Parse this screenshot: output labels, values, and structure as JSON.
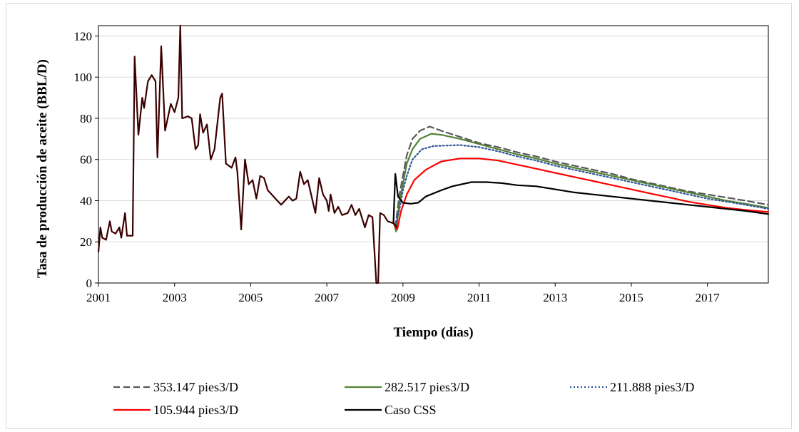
{
  "chart_data": {
    "type": "line",
    "title": "",
    "xlabel": "Tiempo (días)",
    "ylabel": "Tasa de producción de aceite (BBL/D)",
    "xlim": [
      2001,
      2018.6
    ],
    "ylim": [
      0,
      125
    ],
    "x_ticks": [
      2001,
      2003,
      2005,
      2007,
      2009,
      2011,
      2013,
      2015,
      2017
    ],
    "y_ticks": [
      0,
      20,
      40,
      60,
      80,
      100,
      120
    ],
    "grid": "horizontal",
    "legend_position": "bottom",
    "history": {
      "color": "#3b0000",
      "points": [
        [
          2001.0,
          15
        ],
        [
          2001.05,
          27
        ],
        [
          2001.1,
          22
        ],
        [
          2001.2,
          21
        ],
        [
          2001.3,
          30
        ],
        [
          2001.35,
          25
        ],
        [
          2001.45,
          24
        ],
        [
          2001.55,
          27
        ],
        [
          2001.6,
          22
        ],
        [
          2001.7,
          34
        ],
        [
          2001.75,
          23
        ],
        [
          2001.9,
          23
        ],
        [
          2001.95,
          110
        ],
        [
          2002.05,
          72
        ],
        [
          2002.15,
          90
        ],
        [
          2002.2,
          85
        ],
        [
          2002.3,
          98
        ],
        [
          2002.4,
          101
        ],
        [
          2002.5,
          98
        ],
        [
          2002.55,
          61
        ],
        [
          2002.65,
          115
        ],
        [
          2002.75,
          74
        ],
        [
          2002.9,
          87
        ],
        [
          2003.0,
          83
        ],
        [
          2003.1,
          90
        ],
        [
          2003.15,
          125
        ],
        [
          2003.2,
          80
        ],
        [
          2003.35,
          81
        ],
        [
          2003.45,
          80
        ],
        [
          2003.55,
          65
        ],
        [
          2003.62,
          67
        ],
        [
          2003.67,
          82
        ],
        [
          2003.75,
          73
        ],
        [
          2003.85,
          77
        ],
        [
          2003.95,
          60
        ],
        [
          2004.05,
          65
        ],
        [
          2004.2,
          90
        ],
        [
          2004.25,
          92
        ],
        [
          2004.35,
          58
        ],
        [
          2004.5,
          56
        ],
        [
          2004.6,
          61
        ],
        [
          2004.65,
          54
        ],
        [
          2004.75,
          26
        ],
        [
          2004.85,
          60
        ],
        [
          2004.95,
          48
        ],
        [
          2005.05,
          50
        ],
        [
          2005.15,
          41
        ],
        [
          2005.25,
          52
        ],
        [
          2005.35,
          51
        ],
        [
          2005.45,
          45
        ],
        [
          2005.55,
          43
        ],
        [
          2005.65,
          41
        ],
        [
          2005.8,
          38
        ],
        [
          2005.9,
          40
        ],
        [
          2006.0,
          42
        ],
        [
          2006.1,
          40
        ],
        [
          2006.2,
          41
        ],
        [
          2006.3,
          54
        ],
        [
          2006.4,
          48
        ],
        [
          2006.5,
          50
        ],
        [
          2006.6,
          42
        ],
        [
          2006.7,
          34
        ],
        [
          2006.8,
          51
        ],
        [
          2006.9,
          43
        ],
        [
          2007.0,
          40
        ],
        [
          2007.05,
          35
        ],
        [
          2007.1,
          43
        ],
        [
          2007.2,
          34
        ],
        [
          2007.3,
          37
        ],
        [
          2007.4,
          33
        ],
        [
          2007.55,
          34
        ],
        [
          2007.65,
          38
        ],
        [
          2007.75,
          33
        ],
        [
          2007.85,
          36
        ],
        [
          2008.0,
          27
        ],
        [
          2008.1,
          33
        ],
        [
          2008.2,
          32
        ],
        [
          2008.3,
          0
        ],
        [
          2008.35,
          0
        ],
        [
          2008.4,
          34
        ],
        [
          2008.5,
          33
        ],
        [
          2008.6,
          30
        ],
        [
          2008.75,
          29
        ],
        [
          2008.85,
          27
        ]
      ]
    },
    "series": [
      {
        "name": "353.147 pies3/D",
        "color": "#595959",
        "dash": "dashed",
        "points": [
          [
            2008.8,
            27
          ],
          [
            2008.9,
            42
          ],
          [
            2009.0,
            52
          ],
          [
            2009.1,
            62
          ],
          [
            2009.25,
            70
          ],
          [
            2009.45,
            74
          ],
          [
            2009.7,
            76
          ],
          [
            2010.0,
            74
          ],
          [
            2010.5,
            71
          ],
          [
            2011.0,
            68
          ],
          [
            2011.5,
            66
          ],
          [
            2012.0,
            63.5
          ],
          [
            2012.5,
            61.5
          ],
          [
            2013.0,
            59
          ],
          [
            2013.5,
            57
          ],
          [
            2014.0,
            55
          ],
          [
            2014.5,
            53
          ],
          [
            2015.0,
            50.5
          ],
          [
            2015.5,
            48.5
          ],
          [
            2016.0,
            46.5
          ],
          [
            2016.5,
            44.5
          ],
          [
            2017.0,
            43
          ],
          [
            2017.5,
            41.5
          ],
          [
            2018.0,
            40
          ],
          [
            2018.6,
            38
          ]
        ]
      },
      {
        "name": "282.517 pies3/D",
        "color": "#548235",
        "dash": "solid",
        "points": [
          [
            2008.75,
            30
          ],
          [
            2008.82,
            25
          ],
          [
            2008.9,
            38
          ],
          [
            2009.0,
            48
          ],
          [
            2009.1,
            58
          ],
          [
            2009.25,
            65
          ],
          [
            2009.45,
            70
          ],
          [
            2009.75,
            72.5
          ],
          [
            2010.0,
            72
          ],
          [
            2010.5,
            70
          ],
          [
            2011.0,
            67.5
          ],
          [
            2011.5,
            65
          ],
          [
            2012.0,
            62.5
          ],
          [
            2012.5,
            60.5
          ],
          [
            2013.0,
            58
          ],
          [
            2013.5,
            56
          ],
          [
            2014.0,
            54
          ],
          [
            2014.5,
            52
          ],
          [
            2015.0,
            50
          ],
          [
            2015.5,
            48
          ],
          [
            2016.0,
            46
          ],
          [
            2016.5,
            44
          ],
          [
            2017.0,
            42
          ],
          [
            2017.5,
            40
          ],
          [
            2018.0,
            38.5
          ],
          [
            2018.6,
            36.5
          ]
        ]
      },
      {
        "name": "211.888 pies3/D",
        "color": "#2f5597",
        "dash": "dotted",
        "points": [
          [
            2008.8,
            28
          ],
          [
            2008.9,
            35
          ],
          [
            2009.0,
            45
          ],
          [
            2009.1,
            52
          ],
          [
            2009.25,
            60
          ],
          [
            2009.5,
            65
          ],
          [
            2009.8,
            66.5
          ],
          [
            2010.5,
            67
          ],
          [
            2011.0,
            66
          ],
          [
            2011.5,
            64
          ],
          [
            2012.0,
            61.5
          ],
          [
            2012.5,
            59.5
          ],
          [
            2013.0,
            57
          ],
          [
            2013.5,
            55
          ],
          [
            2014.0,
            53
          ],
          [
            2014.5,
            51
          ],
          [
            2015.0,
            49
          ],
          [
            2015.5,
            47
          ],
          [
            2016.0,
            45
          ],
          [
            2016.5,
            43
          ],
          [
            2017.0,
            41
          ],
          [
            2017.5,
            39.5
          ],
          [
            2018.0,
            38
          ],
          [
            2018.6,
            36
          ]
        ]
      },
      {
        "name": "105.944 pies3/D",
        "color": "#ff0000",
        "dash": "solid",
        "points": [
          [
            2008.75,
            29
          ],
          [
            2008.85,
            26
          ],
          [
            2008.95,
            35
          ],
          [
            2009.1,
            43
          ],
          [
            2009.3,
            50
          ],
          [
            2009.6,
            55
          ],
          [
            2010.0,
            59
          ],
          [
            2010.5,
            60.5
          ],
          [
            2011.0,
            60.5
          ],
          [
            2011.5,
            59.5
          ],
          [
            2012.0,
            57.5
          ],
          [
            2012.5,
            55.5
          ],
          [
            2013.0,
            53.5
          ],
          [
            2013.5,
            51.5
          ],
          [
            2014.0,
            49.5
          ],
          [
            2014.5,
            47.5
          ],
          [
            2015.0,
            45.5
          ],
          [
            2015.5,
            43.5
          ],
          [
            2016.0,
            41.5
          ],
          [
            2016.5,
            39.5
          ],
          [
            2017.0,
            38
          ],
          [
            2017.5,
            36.5
          ],
          [
            2018.0,
            35.5
          ],
          [
            2018.6,
            34.5
          ]
        ]
      },
      {
        "name": "Caso CSS",
        "color": "#000000",
        "dash": "solid",
        "points": [
          [
            2008.75,
            29
          ],
          [
            2008.8,
            53
          ],
          [
            2008.87,
            42
          ],
          [
            2009.0,
            39
          ],
          [
            2009.2,
            38.5
          ],
          [
            2009.4,
            39
          ],
          [
            2009.6,
            42
          ],
          [
            2010.0,
            45
          ],
          [
            2010.3,
            47
          ],
          [
            2010.8,
            49
          ],
          [
            2011.2,
            49
          ],
          [
            2011.6,
            48.5
          ],
          [
            2012.0,
            47.5
          ],
          [
            2012.5,
            47
          ],
          [
            2013.0,
            45.5
          ],
          [
            2013.5,
            44
          ],
          [
            2014.0,
            43
          ],
          [
            2014.5,
            42
          ],
          [
            2015.0,
            41
          ],
          [
            2015.5,
            40
          ],
          [
            2016.0,
            39
          ],
          [
            2016.5,
            38
          ],
          [
            2017.0,
            37
          ],
          [
            2017.5,
            36
          ],
          [
            2018.0,
            35
          ],
          [
            2018.6,
            33.5
          ]
        ]
      }
    ],
    "legend": [
      {
        "label": "353.147 pies3/D",
        "color": "#595959",
        "dash": "dashed"
      },
      {
        "label": "282.517 pies3/D",
        "color": "#548235",
        "dash": "solid"
      },
      {
        "label": "211.888 pies3/D",
        "color": "#2f5597",
        "dash": "dotted"
      },
      {
        "label": "105.944 pies3/D",
        "color": "#ff0000",
        "dash": "solid"
      },
      {
        "label": "Caso CSS",
        "color": "#000000",
        "dash": "solid"
      }
    ]
  }
}
